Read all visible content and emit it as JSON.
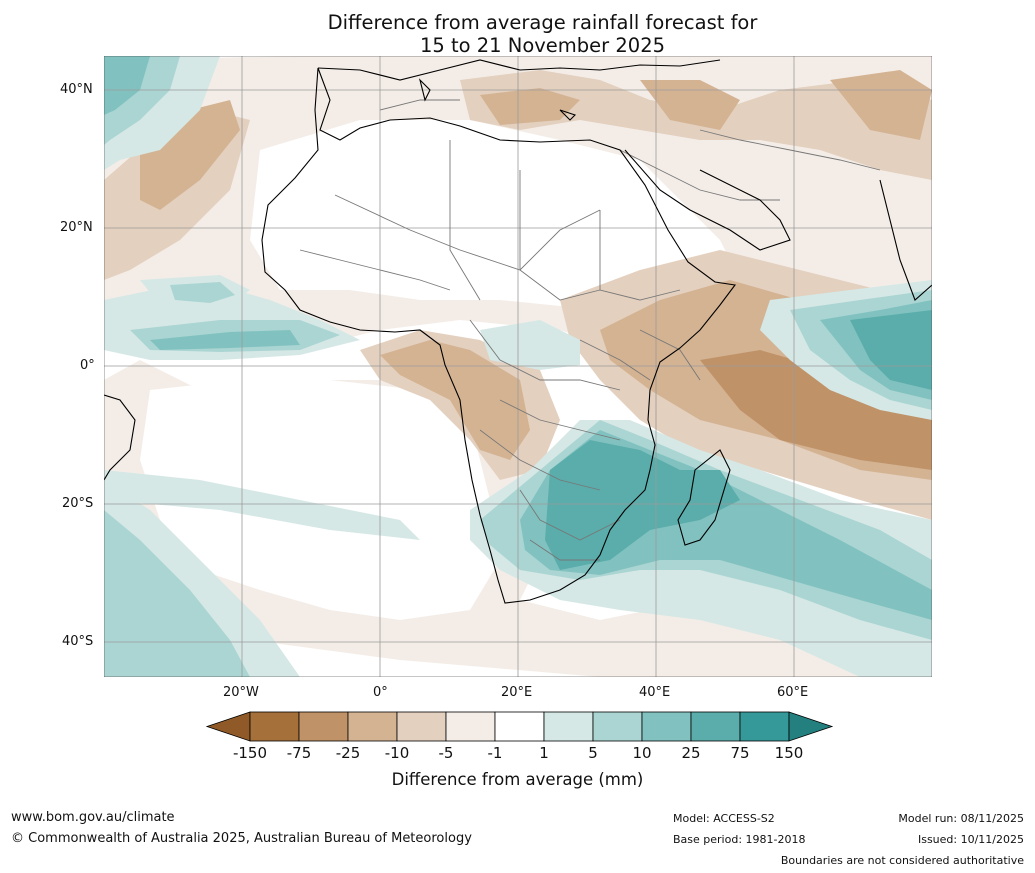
{
  "title": {
    "line1": "Difference from average rainfall forecast for",
    "line2": "15 to 21 November 2025"
  },
  "map": {
    "lat_labels": [
      "40°N",
      "20°N",
      "0°",
      "20°S",
      "40°S"
    ],
    "lon_labels": [
      "20°W",
      "0°",
      "20°E",
      "40°E",
      "60°E"
    ]
  },
  "colorbar": {
    "ticks": [
      "-150",
      "-75",
      "-25",
      "-10",
      "-5",
      "-1",
      "1",
      "5",
      "10",
      "25",
      "75",
      "150"
    ],
    "colors": [
      "#a5703a",
      "#c09268",
      "#d4b393",
      "#e3d0bf",
      "#f4ede7",
      "#ffffff",
      "#d5e8e6",
      "#abd5d3",
      "#81c2c0",
      "#5aadab",
      "#35999a"
    ],
    "under_color": "#8f5a28",
    "over_color": "#23807f",
    "label": "Difference from average (mm)"
  },
  "footer": {
    "website": "www.bom.gov.au/climate",
    "copyright": "© Commonwealth of Australia 2025, Australian Bureau of Meteorology",
    "model": "Model: ACCESS-S2",
    "base_period": "Base period: 1981-2018",
    "model_run": "Model run: 08/11/2025",
    "issued": "Issued: 10/11/2025",
    "boundaries_note": "Boundaries are not considered authoritative"
  }
}
